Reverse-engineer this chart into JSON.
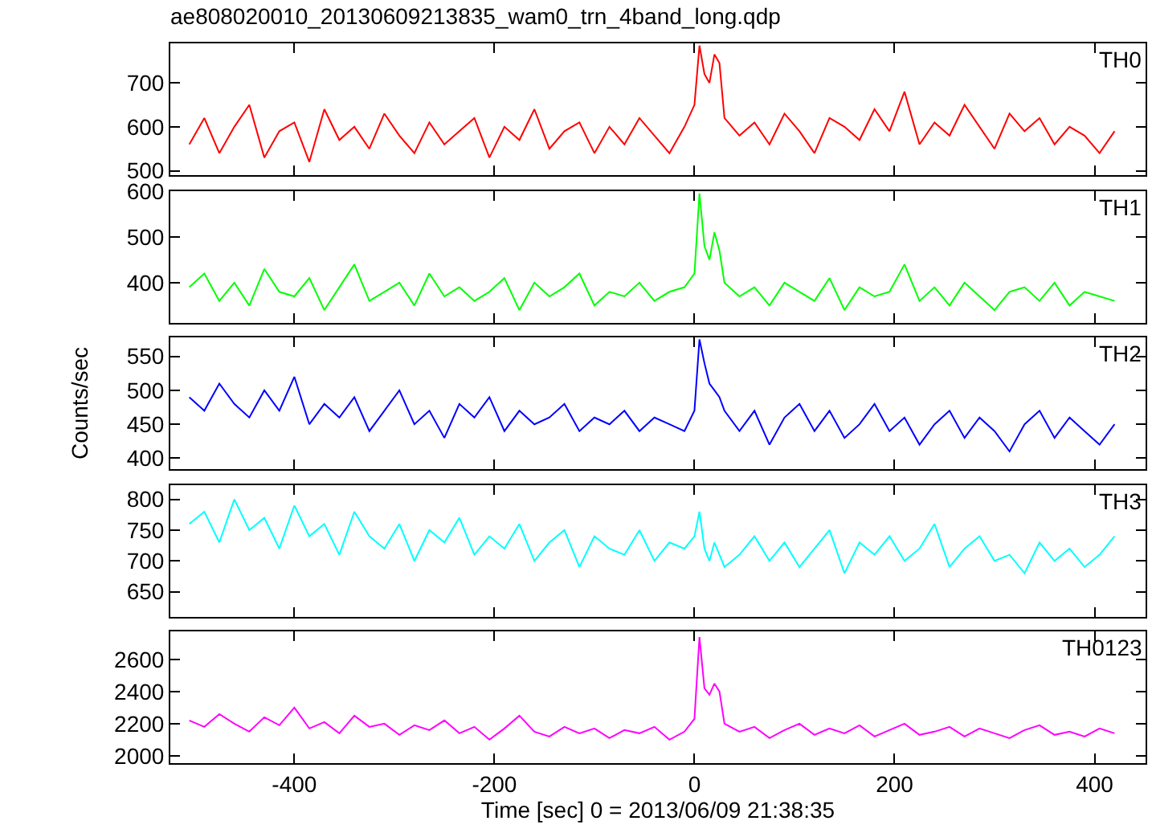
{
  "chart_data": [
    {
      "type": "line",
      "title": "ae808020010_20130609213835_wam0_trn_4band_long.qdp",
      "tick_labels": "y",
      "xlim": [
        -524,
        451
      ],
      "xticks": [
        -400,
        -200,
        0,
        200,
        400
      ],
      "ylim": [
        490,
        790
      ],
      "yticks": [
        500,
        600,
        700
      ],
      "x": [
        -505,
        -490,
        -475,
        -460,
        -445,
        -430,
        -415,
        -400,
        -385,
        -370,
        -355,
        -340,
        -325,
        -310,
        -295,
        -280,
        -265,
        -250,
        -235,
        -220,
        -205,
        -190,
        -175,
        -160,
        -145,
        -130,
        -115,
        -100,
        -85,
        -70,
        -55,
        -40,
        -25,
        -10,
        0,
        5,
        10,
        15,
        20,
        25,
        30,
        45,
        60,
        75,
        90,
        105,
        120,
        135,
        150,
        165,
        180,
        195,
        210,
        225,
        240,
        255,
        270,
        285,
        300,
        315,
        330,
        345,
        360,
        375,
        390,
        405,
        420
      ],
      "series": [
        {
          "name": "TH0",
          "color": "#ff0000",
          "values": [
            560,
            620,
            540,
            600,
            650,
            530,
            590,
            610,
            520,
            640,
            570,
            600,
            550,
            630,
            580,
            540,
            610,
            560,
            590,
            620,
            530,
            600,
            570,
            640,
            550,
            590,
            610,
            540,
            600,
            560,
            620,
            580,
            540,
            600,
            650,
            785,
            720,
            700,
            765,
            745,
            620,
            580,
            610,
            560,
            630,
            590,
            540,
            620,
            600,
            570,
            640,
            590,
            680,
            560,
            610,
            580,
            650,
            600,
            550,
            630,
            590,
            620,
            560,
            600,
            580,
            540,
            590
          ]
        }
      ]
    },
    {
      "type": "line",
      "tick_labels": "y",
      "xlim": [
        -524,
        451
      ],
      "xticks": [
        -400,
        -200,
        0,
        200,
        400
      ],
      "ylim": [
        312,
        600
      ],
      "yticks": [
        400,
        500,
        600
      ],
      "x": [
        -505,
        -490,
        -475,
        -460,
        -445,
        -430,
        -415,
        -400,
        -385,
        -370,
        -355,
        -340,
        -325,
        -310,
        -295,
        -280,
        -265,
        -250,
        -235,
        -220,
        -205,
        -190,
        -175,
        -160,
        -145,
        -130,
        -115,
        -100,
        -85,
        -70,
        -55,
        -40,
        -25,
        -10,
        0,
        5,
        10,
        15,
        20,
        25,
        30,
        45,
        60,
        75,
        90,
        105,
        120,
        135,
        150,
        165,
        180,
        195,
        210,
        225,
        240,
        255,
        270,
        285,
        300,
        315,
        330,
        345,
        360,
        375,
        390,
        405,
        420
      ],
      "series": [
        {
          "name": "TH1",
          "color": "#00ff00",
          "values": [
            390,
            420,
            360,
            400,
            350,
            430,
            380,
            370,
            410,
            340,
            390,
            440,
            360,
            380,
            400,
            350,
            420,
            370,
            390,
            360,
            380,
            410,
            340,
            400,
            370,
            390,
            420,
            350,
            380,
            370,
            400,
            360,
            380,
            390,
            420,
            595,
            480,
            450,
            510,
            470,
            400,
            370,
            390,
            350,
            400,
            380,
            360,
            410,
            340,
            390,
            370,
            380,
            440,
            360,
            390,
            350,
            400,
            370,
            340,
            380,
            390,
            360,
            400,
            350,
            380,
            370,
            360
          ]
        }
      ]
    },
    {
      "type": "line",
      "ylabel": "Counts/sec",
      "tick_labels": "y",
      "xlim": [
        -524,
        451
      ],
      "xticks": [
        -400,
        -200,
        0,
        200,
        400
      ],
      "ylim": [
        384,
        578
      ],
      "yticks": [
        400,
        450,
        500,
        550
      ],
      "x": [
        -505,
        -490,
        -475,
        -460,
        -445,
        -430,
        -415,
        -400,
        -385,
        -370,
        -355,
        -340,
        -325,
        -310,
        -295,
        -280,
        -265,
        -250,
        -235,
        -220,
        -205,
        -190,
        -175,
        -160,
        -145,
        -130,
        -115,
        -100,
        -85,
        -70,
        -55,
        -40,
        -25,
        -10,
        0,
        5,
        10,
        15,
        20,
        25,
        30,
        45,
        60,
        75,
        90,
        105,
        120,
        135,
        150,
        165,
        180,
        195,
        210,
        225,
        240,
        255,
        270,
        285,
        300,
        315,
        330,
        345,
        360,
        375,
        390,
        405,
        420
      ],
      "series": [
        {
          "name": "TH2",
          "color": "#0000ff",
          "values": [
            490,
            470,
            510,
            480,
            460,
            500,
            470,
            520,
            450,
            480,
            460,
            490,
            440,
            470,
            500,
            450,
            470,
            430,
            480,
            460,
            490,
            440,
            470,
            450,
            460,
            480,
            440,
            460,
            450,
            470,
            440,
            460,
            450,
            440,
            470,
            575,
            540,
            510,
            500,
            490,
            470,
            440,
            470,
            420,
            460,
            480,
            440,
            470,
            430,
            450,
            480,
            440,
            460,
            420,
            450,
            470,
            430,
            460,
            440,
            410,
            450,
            470,
            430,
            460,
            440,
            420,
            450
          ]
        }
      ]
    },
    {
      "type": "line",
      "tick_labels": "y",
      "xlim": [
        -524,
        451
      ],
      "xticks": [
        -400,
        -200,
        0,
        200,
        400
      ],
      "ylim": [
        609,
        823
      ],
      "yticks": [
        650,
        700,
        750,
        800
      ],
      "x": [
        -505,
        -490,
        -475,
        -460,
        -445,
        -430,
        -415,
        -400,
        -385,
        -370,
        -355,
        -340,
        -325,
        -310,
        -295,
        -280,
        -265,
        -250,
        -235,
        -220,
        -205,
        -190,
        -175,
        -160,
        -145,
        -130,
        -115,
        -100,
        -85,
        -70,
        -55,
        -40,
        -25,
        -10,
        0,
        5,
        10,
        15,
        20,
        25,
        30,
        45,
        60,
        75,
        90,
        105,
        120,
        135,
        150,
        165,
        180,
        195,
        210,
        225,
        240,
        255,
        270,
        285,
        300,
        315,
        330,
        345,
        360,
        375,
        390,
        405,
        420
      ],
      "series": [
        {
          "name": "TH3",
          "color": "#00ffff",
          "values": [
            760,
            780,
            730,
            800,
            750,
            770,
            720,
            790,
            740,
            760,
            710,
            780,
            740,
            720,
            760,
            700,
            750,
            730,
            770,
            710,
            740,
            720,
            760,
            700,
            730,
            750,
            690,
            740,
            720,
            710,
            750,
            700,
            730,
            720,
            740,
            780,
            720,
            700,
            730,
            710,
            690,
            710,
            740,
            700,
            730,
            690,
            720,
            750,
            680,
            730,
            710,
            740,
            700,
            720,
            760,
            690,
            720,
            740,
            700,
            710,
            680,
            730,
            700,
            720,
            690,
            710,
            740
          ]
        }
      ]
    },
    {
      "type": "line",
      "xlabel": "Time [sec] 0 = 2013/06/09 21:38:35",
      "xlim": [
        -524,
        451
      ],
      "xticks": [
        -400,
        -200,
        0,
        200,
        400
      ],
      "ylim": [
        1954,
        2775
      ],
      "yticks": [
        2000,
        2200,
        2400,
        2600
      ],
      "x": [
        -505,
        -490,
        -475,
        -460,
        -445,
        -430,
        -415,
        -400,
        -385,
        -370,
        -355,
        -340,
        -325,
        -310,
        -295,
        -280,
        -265,
        -250,
        -235,
        -220,
        -205,
        -190,
        -175,
        -160,
        -145,
        -130,
        -115,
        -100,
        -85,
        -70,
        -55,
        -40,
        -25,
        -10,
        0,
        5,
        10,
        15,
        20,
        25,
        30,
        45,
        60,
        75,
        90,
        105,
        120,
        135,
        150,
        165,
        180,
        195,
        210,
        225,
        240,
        255,
        270,
        285,
        300,
        315,
        330,
        345,
        360,
        375,
        390,
        405,
        420
      ],
      "series": [
        {
          "name": "TH0123",
          "color": "#ff00ff",
          "values": [
            2220,
            2180,
            2260,
            2200,
            2150,
            2240,
            2190,
            2300,
            2170,
            2210,
            2140,
            2250,
            2180,
            2200,
            2130,
            2190,
            2160,
            2220,
            2140,
            2180,
            2100,
            2170,
            2250,
            2150,
            2120,
            2180,
            2140,
            2170,
            2110,
            2160,
            2140,
            2180,
            2100,
            2150,
            2230,
            2740,
            2420,
            2380,
            2450,
            2400,
            2200,
            2150,
            2180,
            2110,
            2160,
            2200,
            2130,
            2170,
            2140,
            2190,
            2120,
            2160,
            2200,
            2130,
            2150,
            2180,
            2120,
            2170,
            2140,
            2110,
            2160,
            2190,
            2130,
            2150,
            2120,
            2170,
            2140
          ]
        }
      ]
    }
  ]
}
